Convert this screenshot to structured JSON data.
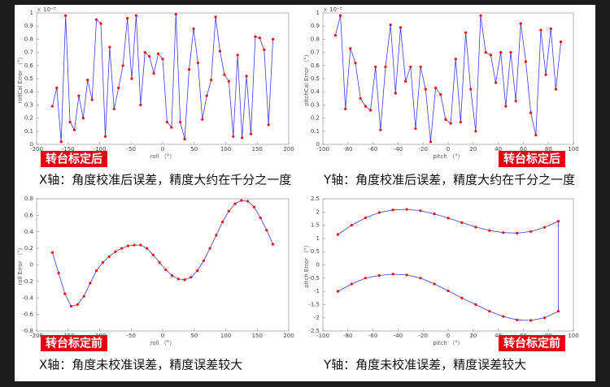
{
  "chart_data": [
    {
      "type": "line",
      "xlabel": "roll （°）",
      "ylabel": "rollCal Error （°）",
      "y_multiplier": "× 10⁻³",
      "badge": "转台标定后",
      "caption": "X轴：角度校准后误差，精度大约在千分之一度",
      "line_color": "#3a3aff",
      "marker_color": "#ff0000",
      "x": [
        -175,
        -168,
        -161,
        -154,
        -147,
        -140,
        -133,
        -126,
        -119,
        -112,
        -105,
        -98,
        -91,
        -84,
        -77,
        -70,
        -63,
        -56,
        -49,
        -42,
        -35,
        -28,
        -21,
        -14,
        -7,
        0,
        7,
        14,
        21,
        28,
        35,
        42,
        49,
        56,
        63,
        70,
        77,
        84,
        91,
        98,
        105,
        112,
        119,
        126,
        133,
        140,
        147,
        154,
        161,
        168,
        175
      ],
      "values": [
        0.29,
        0.43,
        0.02,
        0.98,
        0.17,
        0.11,
        0.37,
        0.2,
        0.49,
        0.34,
        0.95,
        0.92,
        0.06,
        0.74,
        0.27,
        0.43,
        0.6,
        0.96,
        0.5,
        0.98,
        0.3,
        0.7,
        0.67,
        0.54,
        0.69,
        0.65,
        0.17,
        0.13,
        0.99,
        0.17,
        0.04,
        0.57,
        0.88,
        0.62,
        0.19,
        0.37,
        0.49,
        0.97,
        0.71,
        0.53,
        0.48,
        0.06,
        0.68,
        0.05,
        0.52,
        0.08,
        0.82,
        0.81,
        0.72,
        0.15,
        0.8
      ],
      "xlim": [
        -200,
        200
      ],
      "xticks": [
        -200,
        -150,
        -100,
        -50,
        0,
        50,
        100,
        150,
        200
      ],
      "ylim": [
        0,
        1
      ],
      "yticks": [
        0,
        0.1,
        0.2,
        0.3,
        0.4,
        0.5,
        0.6,
        0.7,
        0.8,
        0.9,
        1
      ]
    },
    {
      "type": "line",
      "xlabel": "pitch （°）",
      "ylabel": "pitchCal Error （°）",
      "y_multiplier": "× 10⁻³",
      "badge": "转台标定后",
      "caption": "Y轴：角度校准后误差，精度大约在千分之一度",
      "line_color": "#3a3aff",
      "marker_color": "#ff0000",
      "x": [
        -90,
        -86,
        -82,
        -78,
        -74,
        -70,
        -66,
        -62,
        -58,
        -54,
        -50,
        -46,
        -42,
        -38,
        -34,
        -30,
        -26,
        -22,
        -18,
        -14,
        -10,
        -6,
        -2,
        2,
        6,
        10,
        14,
        18,
        22,
        26,
        30,
        34,
        38,
        42,
        46,
        50,
        54,
        58,
        62,
        66,
        70,
        74,
        78,
        82,
        86,
        90
      ],
      "values": [
        0.83,
        0.98,
        0.27,
        0.73,
        0.62,
        0.35,
        0.29,
        0.26,
        0.59,
        0.11,
        0.59,
        0.91,
        0.39,
        0.89,
        0.48,
        0.59,
        0.12,
        0.59,
        0.42,
        0.02,
        0.43,
        0.38,
        0.19,
        0.16,
        0.65,
        0.17,
        0.85,
        0.42,
        0.1,
        0.98,
        0.7,
        0.68,
        0.47,
        0.7,
        0.29,
        0.7,
        0.33,
        0.92,
        0.63,
        0.24,
        0.07,
        0.87,
        0.53,
        0.88,
        0.42,
        0.78
      ],
      "xlim": [
        -100,
        100
      ],
      "xticks": [
        -100,
        -80,
        -60,
        -40,
        -20,
        0,
        20,
        40,
        60,
        80,
        100
      ],
      "ylim": [
        0,
        1
      ],
      "yticks": [
        0,
        0.1,
        0.2,
        0.3,
        0.4,
        0.5,
        0.6,
        0.7,
        0.8,
        0.9,
        1
      ]
    },
    {
      "type": "line",
      "xlabel": "roll （°）",
      "ylabel": "roll Error （°）",
      "badge": "转台标定前",
      "caption": "X轴：角度未校准误差，精度误差较大",
      "line_color": "#3a3aff",
      "marker_color": "#ff0000",
      "x": [
        -175,
        -165,
        -155,
        -145,
        -135,
        -125,
        -115,
        -105,
        -95,
        -85,
        -75,
        -65,
        -55,
        -45,
        -35,
        -25,
        -15,
        -5,
        5,
        15,
        25,
        35,
        45,
        55,
        65,
        75,
        85,
        95,
        105,
        115,
        125,
        135,
        145,
        155,
        165,
        175
      ],
      "values": [
        0.15,
        -0.1,
        -0.35,
        -0.5,
        -0.48,
        -0.38,
        -0.22,
        -0.07,
        0.03,
        0.1,
        0.16,
        0.2,
        0.23,
        0.24,
        0.24,
        0.2,
        0.12,
        0.03,
        -0.06,
        -0.13,
        -0.17,
        -0.18,
        -0.15,
        -0.07,
        0.05,
        0.2,
        0.36,
        0.52,
        0.65,
        0.74,
        0.78,
        0.77,
        0.7,
        0.57,
        0.42,
        0.25
      ],
      "xlim": [
        -200,
        200
      ],
      "xticks": [
        -200,
        -150,
        -100,
        -50,
        0,
        50,
        100,
        150,
        200
      ],
      "ylim": [
        -0.8,
        0.8
      ],
      "yticks": [
        -0.8,
        -0.6,
        -0.4,
        -0.2,
        0,
        0.2,
        0.4,
        0.6,
        0.8
      ]
    },
    {
      "type": "line",
      "xlabel": "pitch （°）",
      "ylabel": "pitch Error （°）",
      "badge": "转台标定前",
      "caption": "Y轴：角度未校准误差，精度误差较大",
      "line_color": "#3a3aff",
      "marker_color": "#ff0000",
      "x": [
        -88,
        -77,
        -66,
        -55,
        -44,
        -33,
        -22,
        -11,
        0,
        11,
        22,
        33,
        44,
        55,
        66,
        77,
        88,
        88,
        77,
        66,
        55,
        44,
        33,
        22,
        11,
        0,
        -11,
        -22,
        -33,
        -44,
        -55,
        -66,
        -77,
        -88
      ],
      "values": [
        1.15,
        1.5,
        1.78,
        1.98,
        2.08,
        2.1,
        2.05,
        1.93,
        1.77,
        1.6,
        1.43,
        1.3,
        1.22,
        1.2,
        1.26,
        1.42,
        1.65,
        -1.75,
        -2.0,
        -2.1,
        -2.08,
        -1.95,
        -1.75,
        -1.5,
        -1.25,
        -0.98,
        -0.72,
        -0.5,
        -0.38,
        -0.35,
        -0.4,
        -0.5,
        -0.72,
        -1.0
      ],
      "xlim": [
        -100,
        100
      ],
      "xticks": [
        -100,
        -80,
        -60,
        -40,
        -20,
        0,
        20,
        40,
        60,
        80,
        100
      ],
      "ylim": [
        -2.5,
        2.5
      ],
      "yticks": [
        -2.5,
        -2,
        -1.5,
        -1,
        -0.5,
        0,
        0.5,
        1,
        1.5,
        2,
        2.5
      ]
    }
  ]
}
